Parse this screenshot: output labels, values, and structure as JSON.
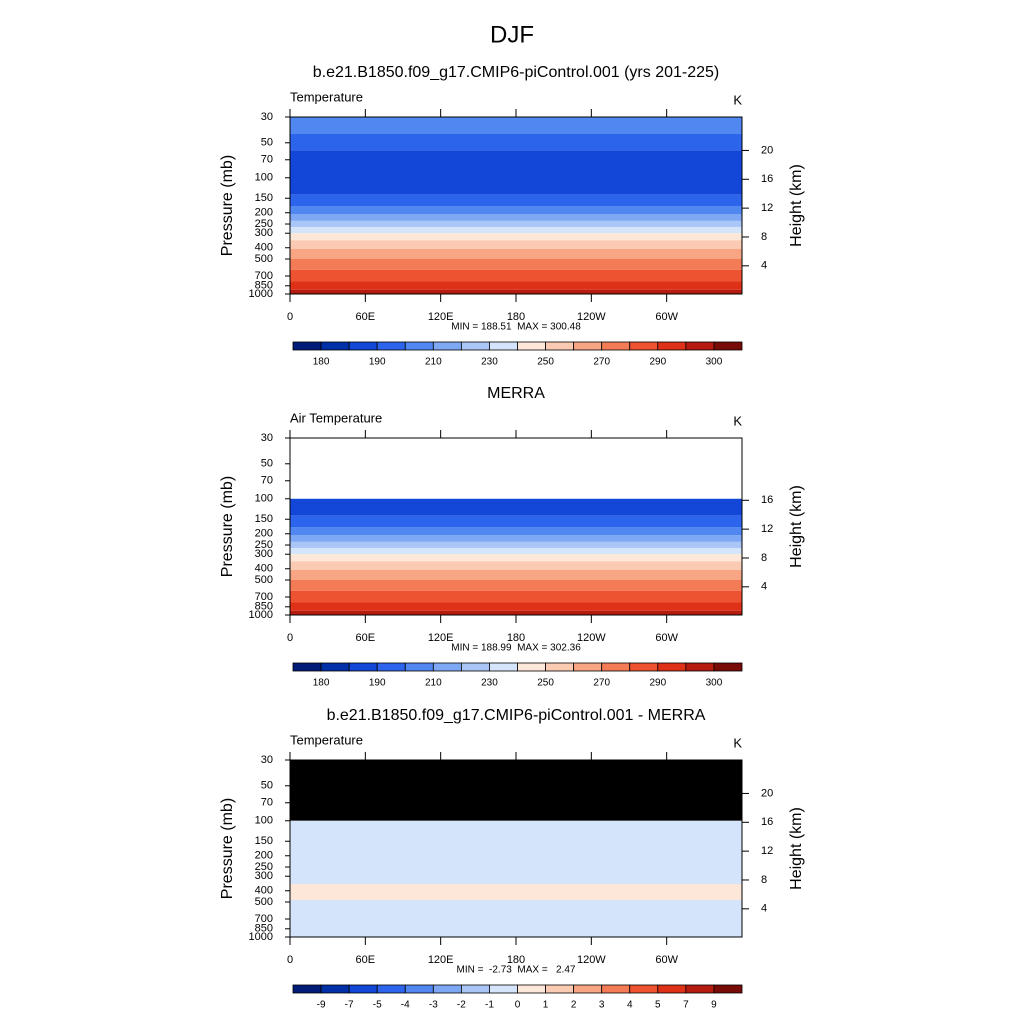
{
  "title": "DJF",
  "chart_data": [
    {
      "type": "contour",
      "title": "b.e21.B1850.f09_g17.CMIP6-piControl.001 (yrs 201-225)",
      "left_string": "Temperature",
      "right_string": "K",
      "ylabel": "Pressure (mb)",
      "y2label": "Height (km)",
      "stats": "MIN = 188.51  MAX = 300.48",
      "xlim": [
        0,
        360
      ],
      "xticks": [
        0,
        {
          "value": 60,
          "label": "60E"
        },
        {
          "value": 120,
          "label": "120E"
        },
        180,
        {
          "value": 240,
          "label": "120W"
        },
        {
          "value": 300,
          "label": "60W"
        }
      ],
      "ylim": [
        1000,
        30
      ],
      "log_y": true,
      "yticks": [
        30,
        50,
        70,
        100,
        150,
        200,
        250,
        300,
        400,
        500,
        700,
        850,
        1000
      ],
      "y2ticks": [
        4,
        8,
        12,
        16,
        20
      ],
      "colorbar": {
        "levels": [
          180,
          185,
          190,
          200,
          210,
          220,
          230,
          240,
          250,
          260,
          270,
          280,
          290,
          295,
          300
        ],
        "ticks": [
          180,
          190,
          210,
          230,
          250,
          270,
          290,
          300
        ],
        "colors": [
          "#001c78",
          "#0030a8",
          "#1247d8",
          "#2d64ec",
          "#5187f0",
          "#7ea8f4",
          "#aac6f7",
          "#d4e4fb",
          "#fde7d8",
          "#fbcab2",
          "#f7a582",
          "#f37b56",
          "#ee5331",
          "#df3018",
          "#b61b10",
          "#780a08"
        ]
      },
      "bands": [
        {
          "p": [
            30,
            42
          ],
          "color": "#5187f0"
        },
        {
          "p": [
            42,
            58
          ],
          "color": "#2d64ec"
        },
        {
          "p": [
            58,
            140
          ],
          "color": "#1247d8"
        },
        {
          "p": [
            140,
            175
          ],
          "color": "#2d64ec"
        },
        {
          "p": [
            175,
            205
          ],
          "color": "#5187f0"
        },
        {
          "p": [
            205,
            235
          ],
          "color": "#7ea8f4"
        },
        {
          "p": [
            235,
            265
          ],
          "color": "#aac6f7"
        },
        {
          "p": [
            265,
            300
          ],
          "color": "#d4e4fb"
        },
        {
          "p": [
            300,
            345
          ],
          "color": "#fde7d8"
        },
        {
          "p": [
            345,
            410
          ],
          "color": "#fbcab2"
        },
        {
          "p": [
            410,
            500
          ],
          "color": "#f7a582"
        },
        {
          "p": [
            500,
            620
          ],
          "color": "#f37b56"
        },
        {
          "p": [
            620,
            780
          ],
          "color": "#ee5331"
        },
        {
          "p": [
            780,
            920
          ],
          "color": "#df3018"
        },
        {
          "p": [
            920,
            1000
          ],
          "color": "#b61b10"
        }
      ]
    },
    {
      "type": "contour",
      "title": "MERRA",
      "left_string": "Air Temperature",
      "right_string": "K",
      "ylabel": "Pressure (mb)",
      "y2label": "Height (km)",
      "stats": "MIN = 188.99  MAX = 302.36",
      "xlim": [
        0,
        360
      ],
      "xticks": [
        0,
        {
          "value": 60,
          "label": "60E"
        },
        {
          "value": 120,
          "label": "120E"
        },
        180,
        {
          "value": 240,
          "label": "120W"
        },
        {
          "value": 300,
          "label": "60W"
        }
      ],
      "ylim": [
        1000,
        30
      ],
      "log_y": true,
      "yticks": [
        30,
        50,
        70,
        100,
        150,
        200,
        250,
        300,
        400,
        500,
        700,
        850,
        1000
      ],
      "y2ticks": [
        4,
        8,
        12,
        16
      ],
      "colorbar": {
        "levels": [
          180,
          185,
          190,
          200,
          210,
          220,
          230,
          240,
          250,
          260,
          270,
          280,
          290,
          295,
          300
        ],
        "ticks": [
          180,
          190,
          210,
          230,
          250,
          270,
          290,
          300
        ],
        "colors": [
          "#001c78",
          "#0030a8",
          "#1247d8",
          "#2d64ec",
          "#5187f0",
          "#7ea8f4",
          "#aac6f7",
          "#d4e4fb",
          "#fde7d8",
          "#fbcab2",
          "#f7a582",
          "#f37b56",
          "#ee5331",
          "#df3018",
          "#b61b10",
          "#780a08"
        ]
      },
      "bands": [
        {
          "p": [
            100,
            140
          ],
          "color": "#1247d8"
        },
        {
          "p": [
            140,
            175
          ],
          "color": "#2d64ec"
        },
        {
          "p": [
            175,
            205
          ],
          "color": "#5187f0"
        },
        {
          "p": [
            205,
            235
          ],
          "color": "#7ea8f4"
        },
        {
          "p": [
            235,
            265
          ],
          "color": "#aac6f7"
        },
        {
          "p": [
            265,
            300
          ],
          "color": "#d4e4fb"
        },
        {
          "p": [
            300,
            345
          ],
          "color": "#fde7d8"
        },
        {
          "p": [
            345,
            410
          ],
          "color": "#fbcab2"
        },
        {
          "p": [
            410,
            500
          ],
          "color": "#f7a582"
        },
        {
          "p": [
            500,
            620
          ],
          "color": "#f37b56"
        },
        {
          "p": [
            620,
            780
          ],
          "color": "#ee5331"
        },
        {
          "p": [
            780,
            920
          ],
          "color": "#df3018"
        },
        {
          "p": [
            920,
            1000
          ],
          "color": "#b61b10"
        }
      ]
    },
    {
      "type": "contour",
      "title": "b.e21.B1850.f09_g17.CMIP6-piControl.001 - MERRA",
      "left_string": "Temperature",
      "right_string": "K",
      "ylabel": "Pressure (mb)",
      "y2label": "Height (km)",
      "stats": "MIN =  -2.73  MAX =   2.47",
      "xlim": [
        0,
        360
      ],
      "xticks": [
        0,
        {
          "value": 60,
          "label": "60E"
        },
        {
          "value": 120,
          "label": "120E"
        },
        180,
        {
          "value": 240,
          "label": "120W"
        },
        {
          "value": 300,
          "label": "60W"
        }
      ],
      "ylim": [
        1000,
        30
      ],
      "log_y": true,
      "yticks": [
        30,
        50,
        70,
        100,
        150,
        200,
        250,
        300,
        400,
        500,
        700,
        850,
        1000
      ],
      "y2ticks": [
        4,
        8,
        12,
        16,
        20
      ],
      "colorbar": {
        "levels": [
          -9,
          -7,
          -5,
          -4,
          -3,
          -2,
          -1,
          0,
          1,
          2,
          3,
          4,
          5,
          7,
          9
        ],
        "ticks": [
          -9,
          -7,
          -5,
          -4,
          -3,
          -2,
          -1,
          0,
          1,
          2,
          3,
          4,
          5,
          7,
          9
        ],
        "colors": [
          "#001c78",
          "#0030a8",
          "#1247d8",
          "#2d64ec",
          "#5187f0",
          "#7ea8f4",
          "#aac6f7",
          "#d4e4fb",
          "#fde7d8",
          "#fbcab2",
          "#f7a582",
          "#f37b56",
          "#ee5331",
          "#df3018",
          "#b61b10",
          "#780a08"
        ]
      },
      "bands": [
        {
          "p": [
            30,
            100
          ],
          "color": "#000000"
        },
        {
          "p": [
            100,
            350
          ],
          "color": "#d4e4fb"
        },
        {
          "p": [
            350,
            480
          ],
          "color": "#fde7d8"
        },
        {
          "p": [
            480,
            1000
          ],
          "color": "#d4e4fb"
        }
      ]
    }
  ]
}
